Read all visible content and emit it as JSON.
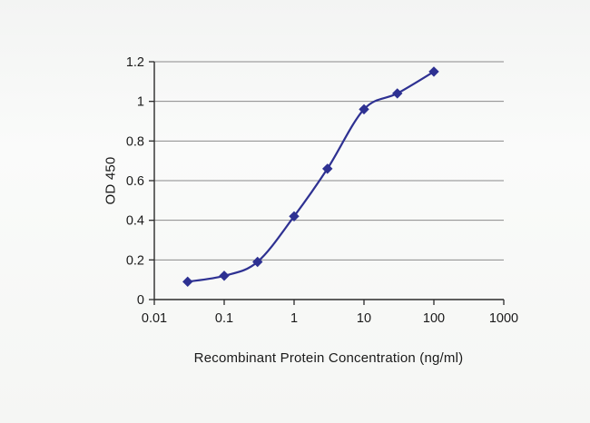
{
  "chart_data": {
    "type": "line",
    "title": "",
    "xlabel": "Recombinant Protein Concentration (ng/ml)",
    "ylabel": "OD 450",
    "x_scale": "log",
    "xlim": [
      0.01,
      1000
    ],
    "ylim": [
      0,
      1.2
    ],
    "x_ticks": [
      {
        "value": 0.01,
        "label": "0.01"
      },
      {
        "value": 0.1,
        "label": "0.1"
      },
      {
        "value": 1,
        "label": "1"
      },
      {
        "value": 10,
        "label": "10"
      },
      {
        "value": 100,
        "label": "100"
      },
      {
        "value": 1000,
        "label": "1000"
      }
    ],
    "y_ticks": [
      {
        "value": 0,
        "label": "0"
      },
      {
        "value": 0.2,
        "label": "0.2"
      },
      {
        "value": 0.4,
        "label": "0.4"
      },
      {
        "value": 0.6,
        "label": "0.6"
      },
      {
        "value": 0.8,
        "label": "0.8"
      },
      {
        "value": 1,
        "label": "1"
      },
      {
        "value": 1.2,
        "label": "1.2"
      }
    ],
    "grid": "horizontal",
    "legend": "none",
    "series": [
      {
        "x": [
          0.03,
          0.1,
          0.3,
          1,
          3,
          10,
          30,
          100
        ],
        "y": [
          0.09,
          0.12,
          0.19,
          0.42,
          0.66,
          0.96,
          1.04,
          1.15
        ],
        "color": "#2e3192",
        "marker": "diamond",
        "line_style": "smooth"
      }
    ]
  },
  "colors": {
    "background": "#f5f6f4",
    "grid": "#8a8a8a",
    "axis": "#2b2b2b",
    "tick_text": "#1a1a1a"
  },
  "layout_text": {}
}
